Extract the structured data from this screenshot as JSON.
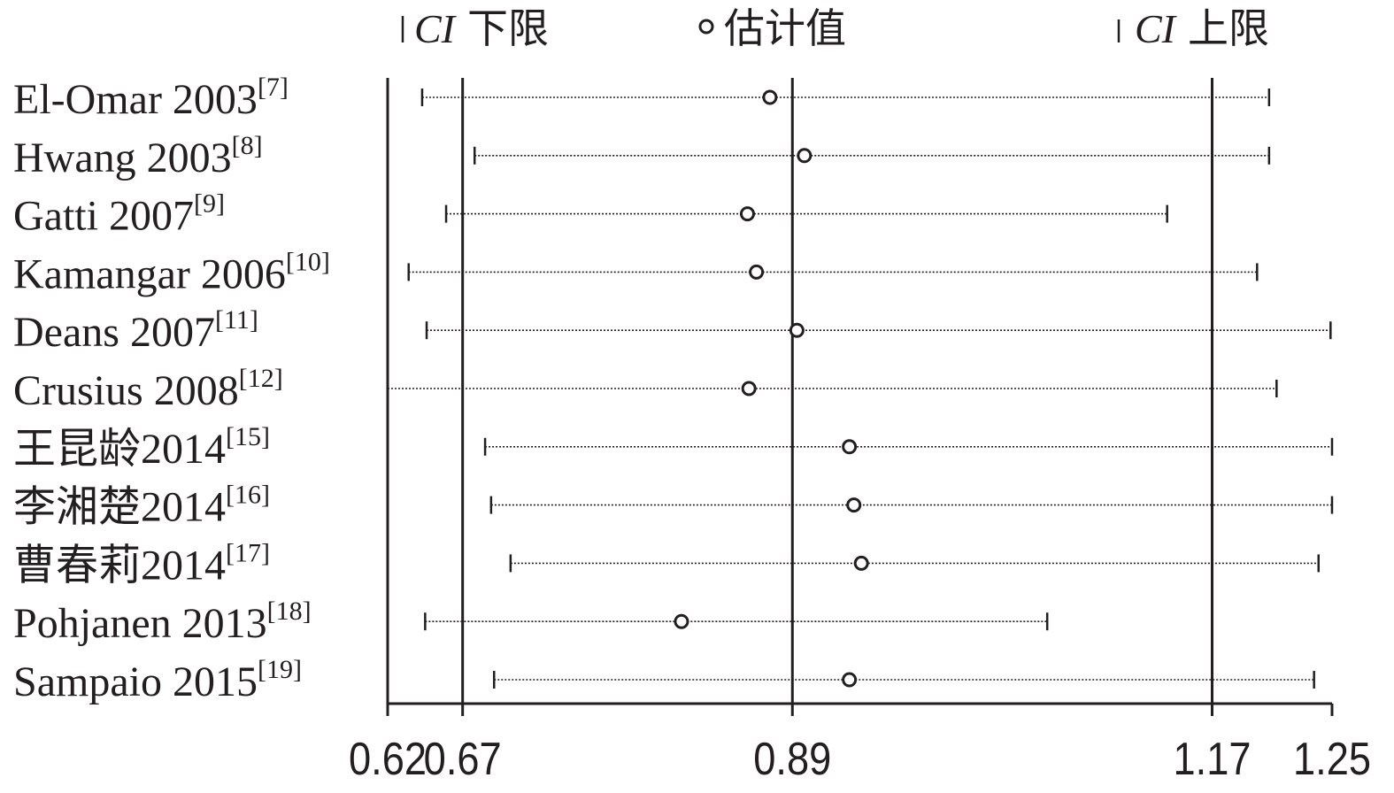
{
  "chart_data": {
    "type": "forest",
    "legend": {
      "ci_lower": {
        "italic": "CI",
        "text": "下限"
      },
      "estimate": {
        "text": "估计值"
      },
      "ci_upper": {
        "italic": "CI",
        "text": "上限"
      }
    },
    "x_axis": {
      "range": [
        0.62,
        1.25
      ],
      "ticks": [
        0.62,
        0.67,
        0.89,
        1.17,
        1.25
      ],
      "tick_labels": [
        "0.62",
        "0.67",
        "0.89",
        "1.17",
        "1.25"
      ],
      "reference_lines": [
        0.67,
        0.89,
        1.17
      ]
    },
    "studies": [
      {
        "name": "El-Omar 2003",
        "ref": "[7]",
        "lower": 0.643,
        "estimate": 0.875,
        "upper": 1.208
      },
      {
        "name": "Hwang 2003",
        "ref": "[8]",
        "lower": 0.678,
        "estimate": 0.898,
        "upper": 1.208
      },
      {
        "name": "Gatti 2007",
        "ref": "[9]",
        "lower": 0.659,
        "estimate": 0.86,
        "upper": 1.14
      },
      {
        "name": "Kamangar 2006",
        "ref": "[10]",
        "lower": 0.634,
        "estimate": 0.866,
        "upper": 1.2
      },
      {
        "name": "Deans 2007",
        "ref": "[11]",
        "lower": 0.646,
        "estimate": 0.893,
        "upper": 1.249
      },
      {
        "name": "Crusius 2008",
        "ref": "[12]",
        "lower": 0.62,
        "estimate": 0.861,
        "upper": 1.213
      },
      {
        "name": "王昆龄2014",
        "ref": "[15]",
        "lower": 0.685,
        "estimate": 0.928,
        "upper": 1.25
      },
      {
        "name": "李湘楚2014",
        "ref": "[16]",
        "lower": 0.689,
        "estimate": 0.931,
        "upper": 1.25
      },
      {
        "name": "曹春莉2014",
        "ref": "[17]",
        "lower": 0.702,
        "estimate": 0.936,
        "upper": 1.241
      },
      {
        "name": "Pohjanen 2013",
        "ref": "[18]",
        "lower": 0.645,
        "estimate": 0.816,
        "upper": 1.06
      },
      {
        "name": "Sampaio 2015",
        "ref": "[19]",
        "lower": 0.691,
        "estimate": 0.928,
        "upper": 1.238
      }
    ]
  }
}
